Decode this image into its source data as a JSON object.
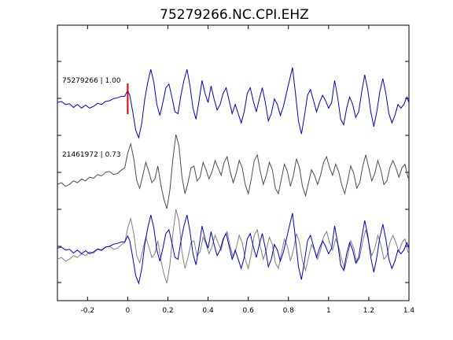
{
  "chart_data": {
    "type": "line",
    "title": "75279266.NC.CPI.EHZ",
    "xlabel": "",
    "ylabel": "",
    "xlim": [
      -0.35,
      1.4
    ],
    "xticks": [
      -0.2,
      0,
      0.2,
      0.4,
      0.6,
      0.8,
      1,
      1.2,
      1.4
    ],
    "xtick_labels": [
      "-0.2",
      "0",
      "0.2",
      "0.4",
      "0.6",
      "0.8",
      "1",
      "1.2",
      "1.4"
    ],
    "grid": false,
    "colors": {
      "reference_trace": "#0000cc",
      "match_trace": "#4d4d4d",
      "overlay_match_trace": "#808080",
      "pick_marker": "#dd0000"
    },
    "pick_time": 0,
    "traces": [
      {
        "label": "75279266 | 1.00",
        "color": "#0000cc",
        "points": [
          [
            -0.35,
            -0.05
          ],
          [
            -0.33,
            -0.02
          ],
          [
            -0.31,
            -0.1
          ],
          [
            -0.29,
            -0.08
          ],
          [
            -0.27,
            -0.18
          ],
          [
            -0.25,
            -0.1
          ],
          [
            -0.23,
            -0.2
          ],
          [
            -0.21,
            -0.12
          ],
          [
            -0.19,
            -0.2
          ],
          [
            -0.17,
            -0.15
          ],
          [
            -0.15,
            -0.07
          ],
          [
            -0.13,
            -0.1
          ],
          [
            -0.11,
            -0.02
          ],
          [
            -0.09,
            0.0
          ],
          [
            -0.07,
            0.06
          ],
          [
            -0.05,
            0.08
          ],
          [
            -0.03,
            0.12
          ],
          [
            -0.015,
            0.12
          ],
          [
            0.0,
            0.28
          ],
          [
            0.01,
            0.15
          ],
          [
            0.025,
            -0.3
          ],
          [
            0.04,
            -0.8
          ],
          [
            0.055,
            -1.0
          ],
          [
            0.07,
            -0.6
          ],
          [
            0.085,
            0.05
          ],
          [
            0.1,
            0.5
          ],
          [
            0.115,
            0.85
          ],
          [
            0.13,
            0.5
          ],
          [
            0.145,
            -0.1
          ],
          [
            0.16,
            -0.4
          ],
          [
            0.175,
            -0.05
          ],
          [
            0.19,
            0.35
          ],
          [
            0.205,
            0.45
          ],
          [
            0.22,
            0.1
          ],
          [
            0.235,
            -0.3
          ],
          [
            0.25,
            -0.35
          ],
          [
            0.265,
            0.15
          ],
          [
            0.28,
            0.55
          ],
          [
            0.295,
            0.85
          ],
          [
            0.31,
            0.4
          ],
          [
            0.325,
            -0.2
          ],
          [
            0.34,
            -0.5
          ],
          [
            0.355,
            0.0
          ],
          [
            0.37,
            0.55
          ],
          [
            0.385,
            0.2
          ],
          [
            0.4,
            -0.05
          ],
          [
            0.415,
            0.4
          ],
          [
            0.43,
            0.05
          ],
          [
            0.445,
            -0.25
          ],
          [
            0.46,
            -0.1
          ],
          [
            0.475,
            0.2
          ],
          [
            0.49,
            0.35
          ],
          [
            0.505,
            0.0
          ],
          [
            0.52,
            -0.35
          ],
          [
            0.535,
            -0.1
          ],
          [
            0.55,
            -0.35
          ],
          [
            0.565,
            -0.6
          ],
          [
            0.58,
            -0.3
          ],
          [
            0.595,
            0.2
          ],
          [
            0.61,
            0.35
          ],
          [
            0.625,
            0.0
          ],
          [
            0.64,
            -0.3
          ],
          [
            0.655,
            0.05
          ],
          [
            0.67,
            0.35
          ],
          [
            0.685,
            -0.05
          ],
          [
            0.7,
            -0.55
          ],
          [
            0.715,
            -0.35
          ],
          [
            0.73,
            0.05
          ],
          [
            0.745,
            -0.1
          ],
          [
            0.76,
            -0.4
          ],
          [
            0.775,
            -0.15
          ],
          [
            0.79,
            0.2
          ],
          [
            0.805,
            0.55
          ],
          [
            0.82,
            0.9
          ],
          [
            0.835,
            0.2
          ],
          [
            0.85,
            -0.55
          ],
          [
            0.865,
            -0.9
          ],
          [
            0.88,
            -0.4
          ],
          [
            0.895,
            0.15
          ],
          [
            0.91,
            0.3
          ],
          [
            0.925,
            0.0
          ],
          [
            0.94,
            -0.3
          ],
          [
            0.955,
            -0.05
          ],
          [
            0.97,
            0.15
          ],
          [
            0.985,
            0.0
          ],
          [
            1.0,
            -0.2
          ],
          [
            1.015,
            -0.05
          ],
          [
            1.03,
            0.55
          ],
          [
            1.045,
            0.1
          ],
          [
            1.06,
            -0.5
          ],
          [
            1.075,
            -0.65
          ],
          [
            1.09,
            -0.2
          ],
          [
            1.105,
            0.1
          ],
          [
            1.12,
            -0.1
          ],
          [
            1.135,
            -0.45
          ],
          [
            1.15,
            -0.3
          ],
          [
            1.165,
            0.25
          ],
          [
            1.18,
            0.7
          ],
          [
            1.195,
            0.3
          ],
          [
            1.21,
            -0.3
          ],
          [
            1.225,
            -0.7
          ],
          [
            1.24,
            -0.3
          ],
          [
            1.255,
            0.25
          ],
          [
            1.27,
            0.6
          ],
          [
            1.285,
            0.2
          ],
          [
            1.3,
            -0.35
          ],
          [
            1.315,
            -0.6
          ],
          [
            1.33,
            -0.4
          ],
          [
            1.345,
            -0.1
          ],
          [
            1.36,
            -0.2
          ],
          [
            1.375,
            -0.1
          ],
          [
            1.39,
            0.1
          ],
          [
            1.4,
            -0.05
          ]
        ]
      },
      {
        "label": "21461972 | 0.73",
        "color": "#4d4d4d",
        "points": [
          [
            -0.35,
            -0.35
          ],
          [
            -0.33,
            -0.3
          ],
          [
            -0.31,
            -0.4
          ],
          [
            -0.29,
            -0.35
          ],
          [
            -0.27,
            -0.25
          ],
          [
            -0.25,
            -0.3
          ],
          [
            -0.23,
            -0.2
          ],
          [
            -0.21,
            -0.25
          ],
          [
            -0.19,
            -0.15
          ],
          [
            -0.17,
            -0.18
          ],
          [
            -0.15,
            -0.08
          ],
          [
            -0.13,
            -0.12
          ],
          [
            -0.11,
            -0.02
          ],
          [
            -0.09,
            0.0
          ],
          [
            -0.07,
            -0.08
          ],
          [
            -0.05,
            -0.05
          ],
          [
            -0.03,
            0.05
          ],
          [
            -0.015,
            0.1
          ],
          [
            0.0,
            0.5
          ],
          [
            0.015,
            0.75
          ],
          [
            0.03,
            0.35
          ],
          [
            0.045,
            -0.25
          ],
          [
            0.06,
            -0.45
          ],
          [
            0.075,
            -0.1
          ],
          [
            0.09,
            0.25
          ],
          [
            0.105,
            0.0
          ],
          [
            0.12,
            -0.3
          ],
          [
            0.135,
            -0.2
          ],
          [
            0.15,
            0.15
          ],
          [
            0.165,
            -0.35
          ],
          [
            0.18,
            -0.75
          ],
          [
            0.195,
            -1.0
          ],
          [
            0.21,
            -0.5
          ],
          [
            0.225,
            0.35
          ],
          [
            0.24,
            1.0
          ],
          [
            0.255,
            0.7
          ],
          [
            0.27,
            -0.15
          ],
          [
            0.285,
            -0.6
          ],
          [
            0.3,
            -0.3
          ],
          [
            0.315,
            0.1
          ],
          [
            0.33,
            0.15
          ],
          [
            0.345,
            -0.25
          ],
          [
            0.36,
            -0.15
          ],
          [
            0.375,
            0.25
          ],
          [
            0.39,
            0.05
          ],
          [
            0.405,
            -0.2
          ],
          [
            0.42,
            0.0
          ],
          [
            0.435,
            0.3
          ],
          [
            0.45,
            0.1
          ],
          [
            0.465,
            -0.1
          ],
          [
            0.48,
            0.25
          ],
          [
            0.495,
            0.4
          ],
          [
            0.51,
            0.0
          ],
          [
            0.525,
            -0.3
          ],
          [
            0.54,
            -0.05
          ],
          [
            0.555,
            0.3
          ],
          [
            0.57,
            0.1
          ],
          [
            0.585,
            -0.35
          ],
          [
            0.6,
            -0.6
          ],
          [
            0.615,
            -0.2
          ],
          [
            0.63,
            0.3
          ],
          [
            0.645,
            0.45
          ],
          [
            0.66,
            0.0
          ],
          [
            0.675,
            -0.35
          ],
          [
            0.69,
            -0.1
          ],
          [
            0.705,
            0.25
          ],
          [
            0.72,
            0.05
          ],
          [
            0.735,
            -0.45
          ],
          [
            0.75,
            -0.6
          ],
          [
            0.765,
            -0.2
          ],
          [
            0.78,
            0.2
          ],
          [
            0.795,
            0.0
          ],
          [
            0.81,
            -0.4
          ],
          [
            0.825,
            -0.1
          ],
          [
            0.84,
            0.35
          ],
          [
            0.855,
            0.1
          ],
          [
            0.87,
            -0.4
          ],
          [
            0.885,
            -0.65
          ],
          [
            0.9,
            -0.3
          ],
          [
            0.915,
            0.05
          ],
          [
            0.93,
            -0.1
          ],
          [
            0.945,
            -0.35
          ],
          [
            0.96,
            -0.1
          ],
          [
            0.975,
            0.25
          ],
          [
            0.99,
            0.4
          ],
          [
            1.005,
            0.1
          ],
          [
            1.02,
            -0.1
          ],
          [
            1.035,
            0.2
          ],
          [
            1.05,
            0.0
          ],
          [
            1.065,
            -0.35
          ],
          [
            1.08,
            -0.6
          ],
          [
            1.095,
            -0.25
          ],
          [
            1.11,
            0.15
          ],
          [
            1.125,
            -0.05
          ],
          [
            1.14,
            -0.45
          ],
          [
            1.155,
            -0.3
          ],
          [
            1.17,
            0.15
          ],
          [
            1.185,
            0.45
          ],
          [
            1.2,
            0.1
          ],
          [
            1.215,
            -0.25
          ],
          [
            1.23,
            -0.05
          ],
          [
            1.245,
            0.3
          ],
          [
            1.26,
            0.05
          ],
          [
            1.275,
            -0.35
          ],
          [
            1.29,
            -0.25
          ],
          [
            1.305,
            0.1
          ],
          [
            1.32,
            0.3
          ],
          [
            1.335,
            0.1
          ],
          [
            1.35,
            -0.15
          ],
          [
            1.365,
            0.1
          ],
          [
            1.38,
            0.2
          ],
          [
            1.395,
            -0.15
          ],
          [
            1.4,
            -0.2
          ]
        ]
      }
    ]
  }
}
